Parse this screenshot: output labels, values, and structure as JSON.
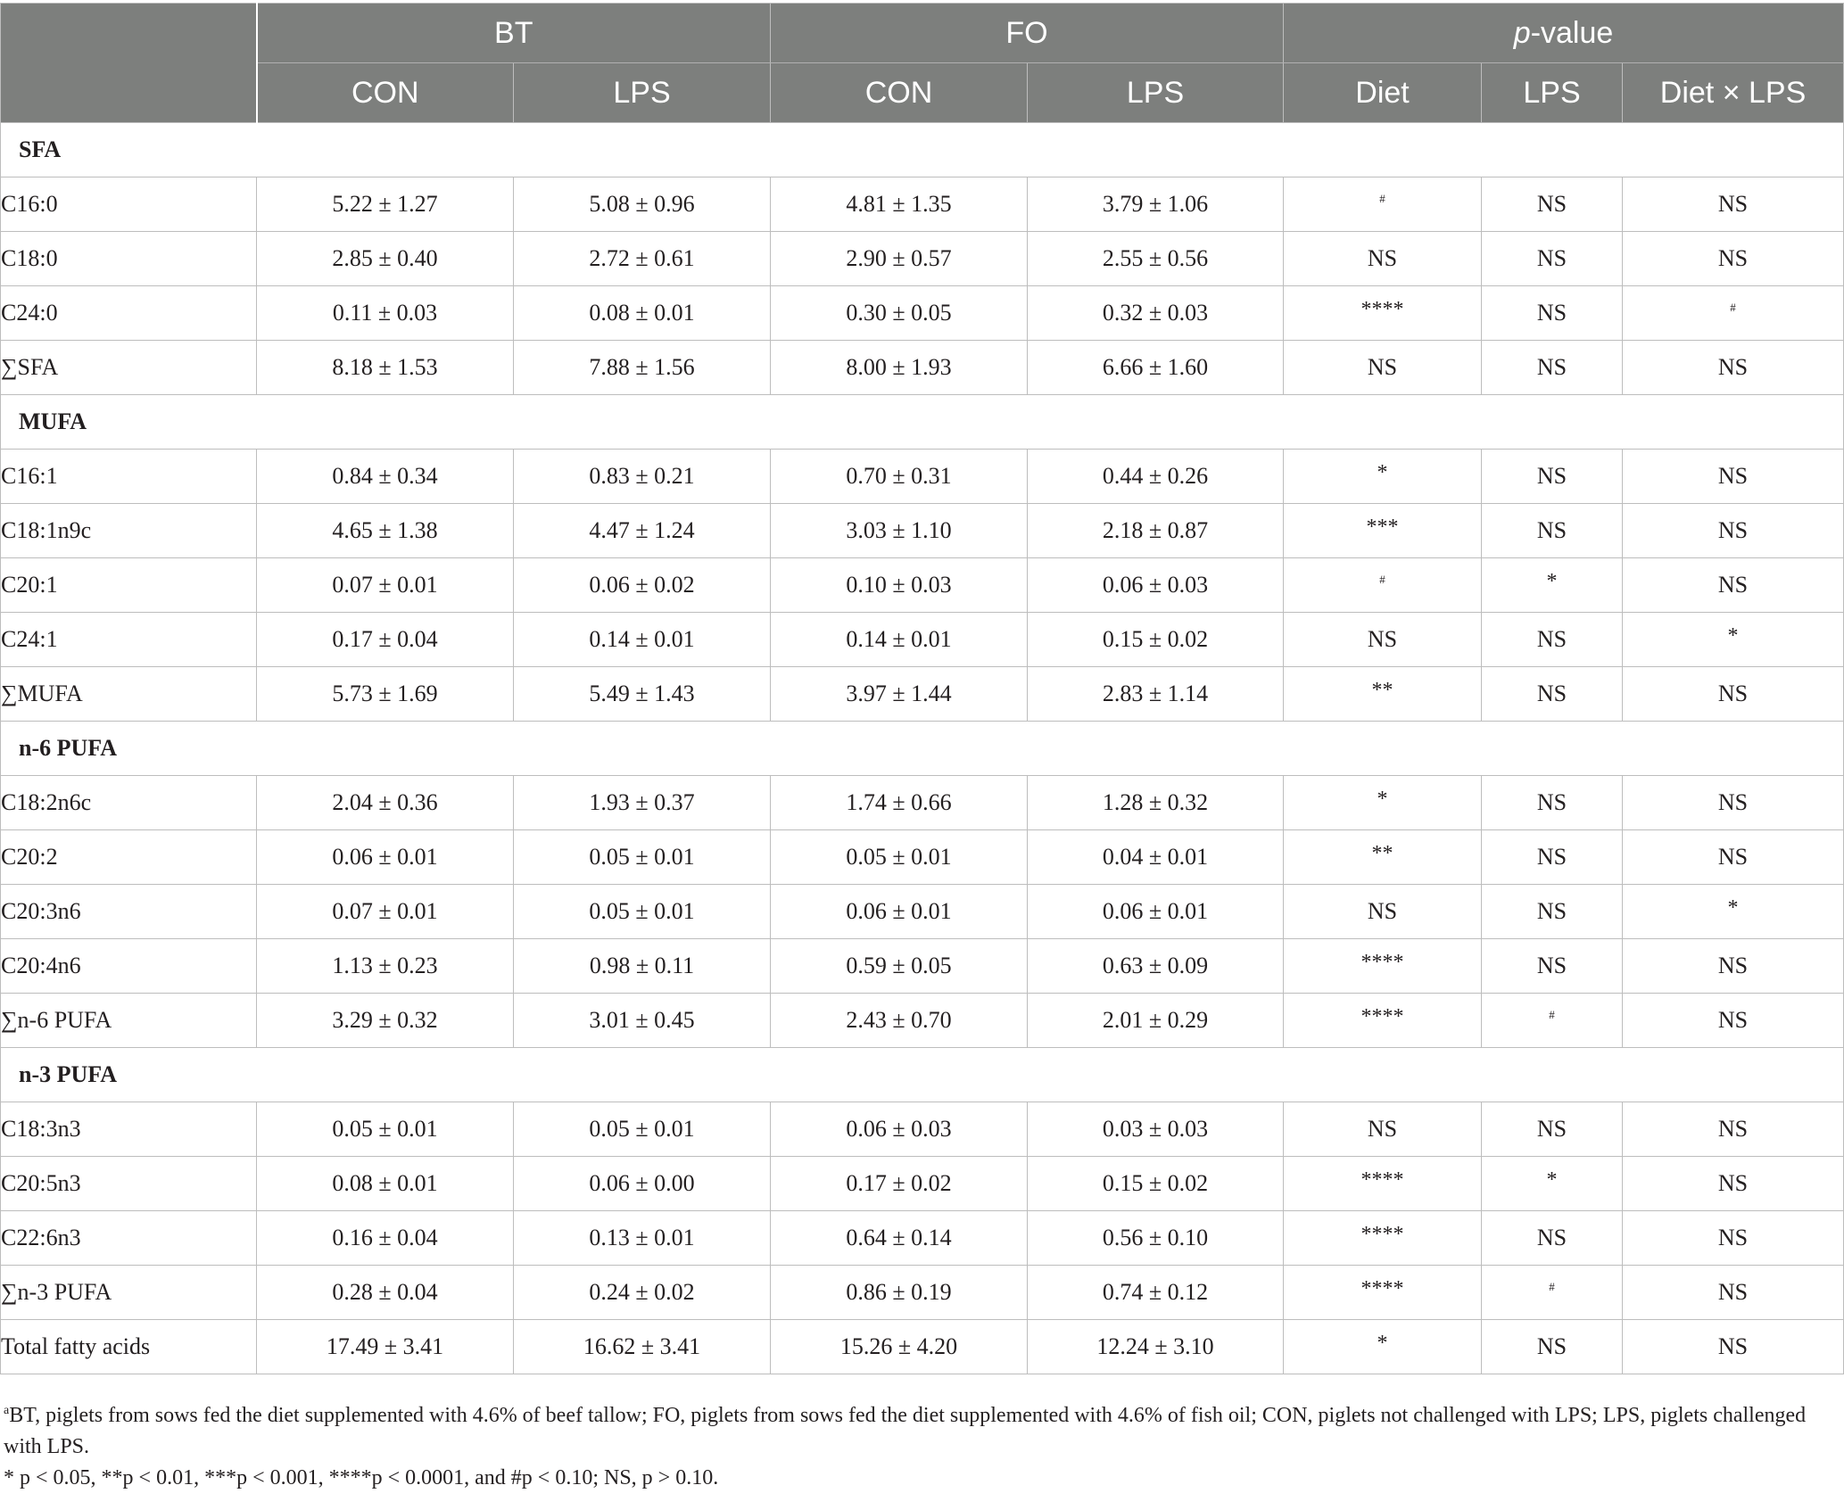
{
  "header": {
    "groups": [
      "BT",
      "FO"
    ],
    "pvalue_italic": "p",
    "pvalue_rest": "-value",
    "sub": [
      "CON",
      "LPS",
      "CON",
      "LPS",
      "Diet",
      "LPS",
      "Diet × LPS"
    ]
  },
  "sections": [
    {
      "title": "SFA",
      "rows": [
        {
          "label": "C16:0",
          "cells": [
            "5.22 ± 1.27",
            "5.08 ± 0.96",
            "4.81 ± 1.35",
            "3.79 ± 1.06"
          ],
          "p": [
            "#",
            "NS",
            "NS"
          ]
        },
        {
          "label": "C18:0",
          "cells": [
            "2.85 ± 0.40",
            "2.72 ± 0.61",
            "2.90 ± 0.57",
            "2.55 ± 0.56"
          ],
          "p": [
            "NS",
            "NS",
            "NS"
          ]
        },
        {
          "label": "C24:0",
          "cells": [
            "0.11 ± 0.03",
            "0.08 ± 0.01",
            "0.30 ± 0.05",
            "0.32 ± 0.03"
          ],
          "p": [
            "****",
            "NS",
            "#"
          ]
        },
        {
          "label": "∑SFA",
          "cells": [
            "8.18 ± 1.53",
            "7.88 ± 1.56",
            "8.00 ± 1.93",
            "6.66 ± 1.60"
          ],
          "p": [
            "NS",
            "NS",
            "NS"
          ]
        }
      ]
    },
    {
      "title": "MUFA",
      "rows": [
        {
          "label": "C16:1",
          "cells": [
            "0.84 ± 0.34",
            "0.83 ± 0.21",
            "0.70 ± 0.31",
            "0.44 ± 0.26"
          ],
          "p": [
            "*",
            "NS",
            "NS"
          ]
        },
        {
          "label": "C18:1n9c",
          "cells": [
            "4.65 ± 1.38",
            "4.47 ± 1.24",
            "3.03 ± 1.10",
            "2.18 ± 0.87"
          ],
          "p": [
            "***",
            "NS",
            "NS"
          ]
        },
        {
          "label": "C20:1",
          "cells": [
            "0.07 ± 0.01",
            "0.06 ± 0.02",
            "0.10 ± 0.03",
            "0.06 ± 0.03"
          ],
          "p": [
            "#",
            "*",
            "NS"
          ]
        },
        {
          "label": "C24:1",
          "cells": [
            "0.17 ± 0.04",
            "0.14 ± 0.01",
            "0.14 ± 0.01",
            "0.15 ± 0.02"
          ],
          "p": [
            "NS",
            "NS",
            "*"
          ]
        },
        {
          "label": "∑MUFA",
          "cells": [
            "5.73 ± 1.69",
            "5.49 ± 1.43",
            "3.97 ± 1.44",
            "2.83 ± 1.14"
          ],
          "p": [
            "**",
            "NS",
            "NS"
          ]
        }
      ]
    },
    {
      "title": "n-6 PUFA",
      "rows": [
        {
          "label": "C18:2n6c",
          "cells": [
            "2.04 ± 0.36",
            "1.93 ± 0.37",
            "1.74 ± 0.66",
            "1.28 ± 0.32"
          ],
          "p": [
            "*",
            "NS",
            "NS"
          ]
        },
        {
          "label": "C20:2",
          "cells": [
            "0.06 ± 0.01",
            "0.05 ± 0.01",
            "0.05 ± 0.01",
            "0.04 ± 0.01"
          ],
          "p": [
            "**",
            "NS",
            "NS"
          ]
        },
        {
          "label": "C20:3n6",
          "cells": [
            "0.07 ± 0.01",
            "0.05 ± 0.01",
            "0.06 ± 0.01",
            "0.06 ± 0.01"
          ],
          "p": [
            "NS",
            "NS",
            "*"
          ]
        },
        {
          "label": "C20:4n6",
          "cells": [
            "1.13 ± 0.23",
            "0.98 ± 0.11",
            "0.59 ± 0.05",
            "0.63 ± 0.09"
          ],
          "p": [
            "****",
            "NS",
            "NS"
          ]
        },
        {
          "label": "∑n-6 PUFA",
          "cells": [
            "3.29 ± 0.32",
            "3.01 ± 0.45",
            "2.43 ± 0.70",
            "2.01 ± 0.29"
          ],
          "p": [
            "****",
            "#",
            "NS"
          ]
        }
      ]
    },
    {
      "title": "n-3 PUFA",
      "rows": [
        {
          "label": "C18:3n3",
          "cells": [
            "0.05 ± 0.01",
            "0.05 ± 0.01",
            "0.06 ± 0.03",
            "0.03 ± 0.03"
          ],
          "p": [
            "NS",
            "NS",
            "NS"
          ]
        },
        {
          "label": "C20:5n3",
          "cells": [
            "0.08 ± 0.01",
            "0.06 ± 0.00",
            "0.17 ± 0.02",
            "0.15 ± 0.02"
          ],
          "p": [
            "****",
            "*",
            "NS"
          ]
        },
        {
          "label": "C22:6n3",
          "cells": [
            "0.16 ± 0.04",
            "0.13 ± 0.01",
            "0.64 ± 0.14",
            "0.56 ± 0.10"
          ],
          "p": [
            "****",
            "NS",
            "NS"
          ]
        },
        {
          "label": "∑n-3 PUFA",
          "cells": [
            "0.28 ± 0.04",
            "0.24 ± 0.02",
            "0.86 ± 0.19",
            "0.74 ± 0.12"
          ],
          "p": [
            "****",
            "#",
            "NS"
          ]
        },
        {
          "label": "Total fatty acids",
          "cells": [
            "17.49 ± 3.41",
            "16.62 ± 3.41",
            "15.26 ± 4.20",
            "12.24 ± 3.10"
          ],
          "p": [
            "*",
            "NS",
            "NS"
          ]
        }
      ]
    }
  ],
  "footnotes": {
    "note_a_mark": "a",
    "note_a": "BT, piglets from sows fed the diet supplemented with 4.6% of beef tallow; FO, piglets from sows fed the diet supplemented with 4.6% of fish oil; CON, piglets not challenged with LPS; LPS, piglets challenged with LPS.",
    "sig_line": "* p < 0.05, **p < 0.01, ***p < 0.001, ****p < 0.0001, and #p < 0.10; NS, p > 0.10."
  }
}
